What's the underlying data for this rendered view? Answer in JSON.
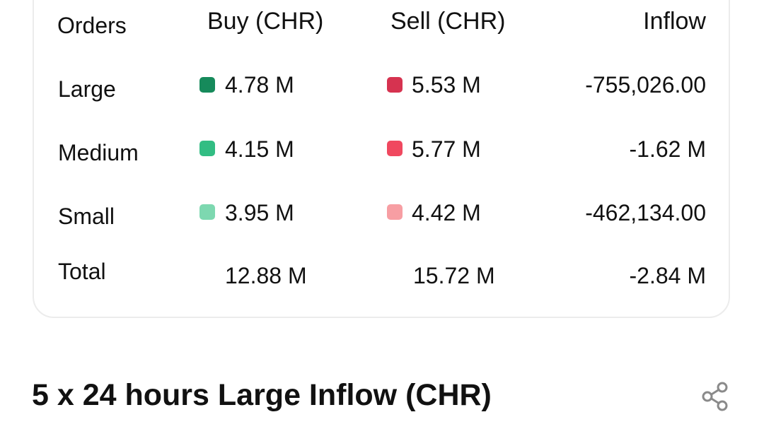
{
  "table": {
    "headers": {
      "orders": "Orders",
      "buy": "Buy (CHR)",
      "sell": "Sell (CHR)",
      "inflow": "Inflow"
    },
    "rows": [
      {
        "label": "Large",
        "buy": "4.78 M",
        "sell": "5.53 M",
        "inflow": "-755,026.00"
      },
      {
        "label": "Medium",
        "buy": "4.15 M",
        "sell": "5.77 M",
        "inflow": "-1.62 M"
      },
      {
        "label": "Small",
        "buy": "3.95 M",
        "sell": "4.42 M",
        "inflow": "-462,134.00"
      }
    ],
    "total": {
      "label": "Total",
      "buy": "12.88 M",
      "sell": "15.72 M",
      "inflow": "-2.84 M"
    }
  },
  "colors": {
    "buy_large": "#168a5b",
    "buy_medium": "#32bd83",
    "buy_small": "#7dd8b0",
    "sell_large": "#d63350",
    "sell_medium": "#f0485f",
    "sell_small": "#f79ea3"
  },
  "section": {
    "title": "5 x 24 hours Large Inflow (CHR)",
    "share_icon": "share-icon"
  }
}
